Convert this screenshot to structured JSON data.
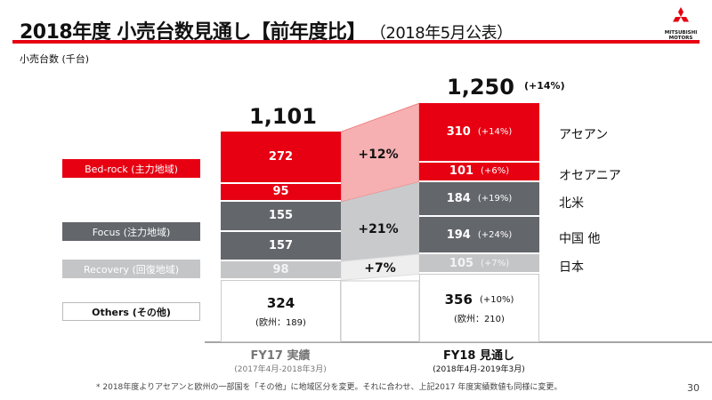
{
  "header": {
    "title": "2018年度 小売台数見通し【前年度比】",
    "subtitle": "（2018年5月公表）",
    "unit": "小売台数 (千台)",
    "logo_text": [
      "MITSUBISHI",
      "MOTORS"
    ]
  },
  "legend": [
    {
      "label": "Bed-rock (主力地域)",
      "color": "#e60012"
    },
    {
      "label": "Focus (注力地域)",
      "color": "#63666b"
    },
    {
      "label": "Recovery (回復地域)",
      "color": "#c4c5c7"
    },
    {
      "label": "Others (その他)",
      "color": "#ffffff"
    }
  ],
  "chart_data": {
    "type": "bar",
    "stacked": true,
    "categories": [
      "FY17 実績",
      "FY18 見通し"
    ],
    "category_sub": [
      "(2017年4月-2018年3月)",
      "(2018年4月-2019年3月)"
    ],
    "totals": [
      "1,101",
      "1,250"
    ],
    "total_change": [
      "",
      "(+14%)"
    ],
    "series": [
      {
        "name": "アセアン",
        "group": "Bed-rock",
        "values": [
          272,
          310
        ],
        "change": "(+14%)"
      },
      {
        "name": "オセアニア",
        "group": "Bed-rock",
        "values": [
          95,
          101
        ],
        "change": "(+6%)"
      },
      {
        "name": "北米",
        "group": "Focus",
        "values": [
          155,
          184
        ],
        "change": "(+19%)"
      },
      {
        "name": "中国 他",
        "group": "Focus",
        "values": [
          157,
          194
        ],
        "change": "(+24%)"
      },
      {
        "name": "日本",
        "group": "Recovery",
        "values": [
          98,
          105
        ],
        "change": "(+7%)"
      },
      {
        "name": "Others",
        "group": "Others",
        "values": [
          324,
          356
        ],
        "change": "(+10%)",
        "sub": [
          "(欧州：189)",
          "(欧州：210)"
        ]
      }
    ],
    "group_changes": {
      "Bed-rock": "+12%",
      "Focus": "+21%",
      "Recovery": "+7%"
    },
    "ylim": [
      0,
      1300
    ]
  },
  "footer": {
    "note": "* 2018年度よりアセアンと欧州の一部国を「その他」に地域区分を変更。それに合わせ、上記2017 年度実績数値も同様に変更。",
    "page": "30"
  }
}
